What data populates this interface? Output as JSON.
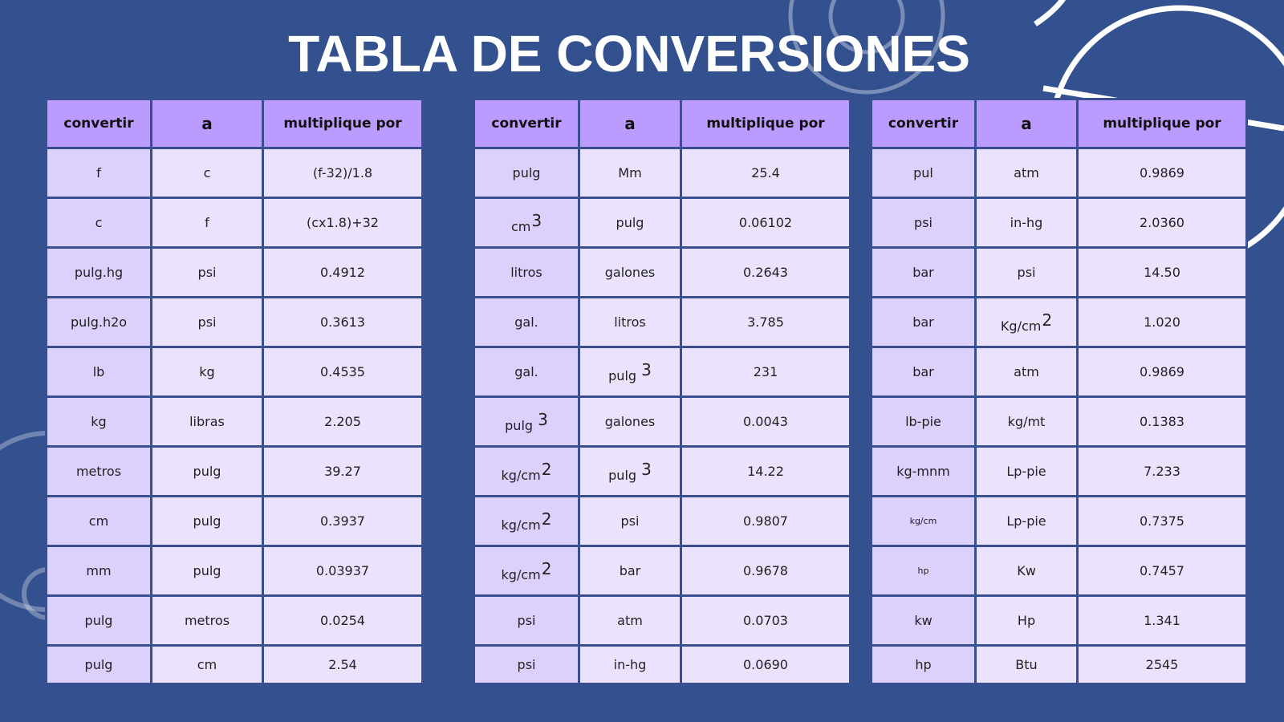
{
  "title": "TABLA DE CONVERSIONES",
  "headers": [
    "convertir",
    "a",
    "multiplique por"
  ],
  "tables": [
    {
      "rows": [
        [
          "f",
          "c",
          "(f-32)/1.8"
        ],
        [
          "c",
          "f",
          "(cx1.8)+32"
        ],
        [
          "pulg.hg",
          "psi",
          "0.4912"
        ],
        [
          "pulg.h2o",
          "psi",
          "0.3613"
        ],
        [
          "lb",
          "kg",
          "0.4535"
        ],
        [
          "kg",
          "libras",
          "2.205"
        ],
        [
          "metros",
          "pulg",
          "39.27"
        ],
        [
          "cm",
          "pulg",
          "0.3937"
        ],
        [
          "mm",
          "pulg",
          "0.03937"
        ],
        [
          "pulg",
          "metros",
          "0.0254"
        ],
        [
          "pulg",
          "cm",
          "2.54"
        ]
      ]
    },
    {
      "rows": [
        [
          "pulg",
          "Mm",
          "25.4"
        ],
        [
          {
            "t": "cm",
            "sup": "3"
          },
          "pulg",
          "0.06102"
        ],
        [
          "litros",
          "galones",
          "0.2643"
        ],
        [
          "gal.",
          "litros",
          "3.785"
        ],
        [
          "gal.",
          {
            "t": "pulg ",
            "sup": "3"
          },
          "231"
        ],
        [
          {
            "t": "pulg ",
            "sup": "3"
          },
          "galones",
          "0.0043"
        ],
        [
          {
            "t": "kg/cm",
            "sup": "2"
          },
          {
            "t": "pulg ",
            "sup": "3"
          },
          "14.22"
        ],
        [
          {
            "t": "kg/cm",
            "sup": "2"
          },
          "psi",
          "0.9807"
        ],
        [
          {
            "t": "kg/cm",
            "sup": "2"
          },
          "bar",
          "0.9678"
        ],
        [
          "psi",
          "atm",
          "0.0703"
        ],
        [
          "psi",
          "in-hg",
          "0.0690"
        ]
      ]
    },
    {
      "rows": [
        [
          "pul",
          "atm",
          "0.9869"
        ],
        [
          "psi",
          "in-hg",
          "2.0360"
        ],
        [
          "bar",
          "psi",
          "14.50"
        ],
        [
          "bar",
          {
            "t": "Kg/cm",
            "sup": "2"
          },
          "1.020"
        ],
        [
          "bar",
          "atm",
          "0.9869"
        ],
        [
          "lb-pie",
          "kg/mt",
          "0.1383"
        ],
        [
          "kg-mnm",
          "Lp-pie",
          "7.233"
        ],
        [
          "kg/cm",
          "Lp-pie",
          "0.7375"
        ],
        [
          "hp",
          "Kw",
          "0.7457"
        ],
        [
          "kw",
          "Hp",
          "1.341"
        ],
        [
          "hp",
          "Btu",
          "2545"
        ]
      ]
    }
  ],
  "colors": {
    "background": "#34518f",
    "header": "#bb9bfd",
    "first_column": "#dcd0fd",
    "cells": "#ebe3fe",
    "border": "#3a4f8f"
  }
}
